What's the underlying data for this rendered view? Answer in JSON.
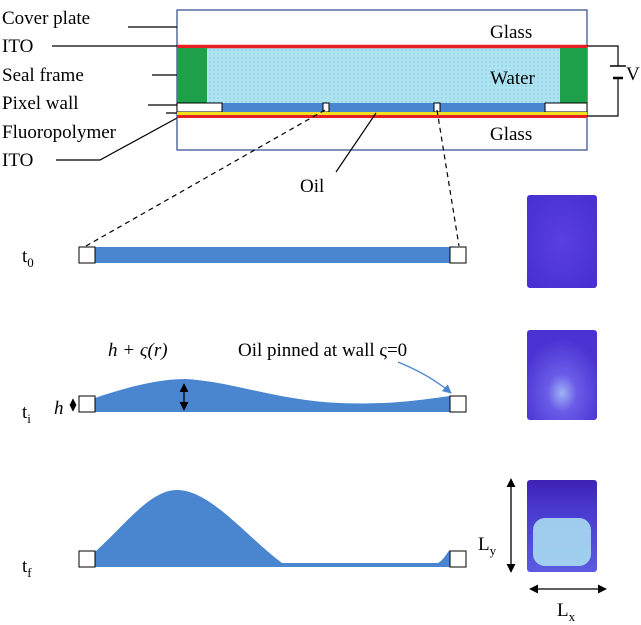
{
  "device": {
    "labels_left": [
      "Cover plate",
      "ITO",
      "Seal frame",
      "Pixel wall",
      "Fluoropolymer",
      "ITO"
    ],
    "glass_top": "Glass",
    "water": "Water",
    "glass_bottom": "Glass",
    "voltage": "V",
    "oil": "Oil"
  },
  "stages": [
    {
      "base": "t",
      "sub": "0"
    },
    {
      "base": "t",
      "sub": "i"
    },
    {
      "base": "t",
      "sub": "f"
    }
  ],
  "annotations": {
    "height_expr": "h + ς(r)",
    "pinned": "Oil pinned at wall ς=0",
    "h": "h"
  },
  "dimensions": {
    "ly": {
      "base": "L",
      "sub": "y"
    },
    "lx": {
      "base": "L",
      "sub": "x"
    }
  }
}
